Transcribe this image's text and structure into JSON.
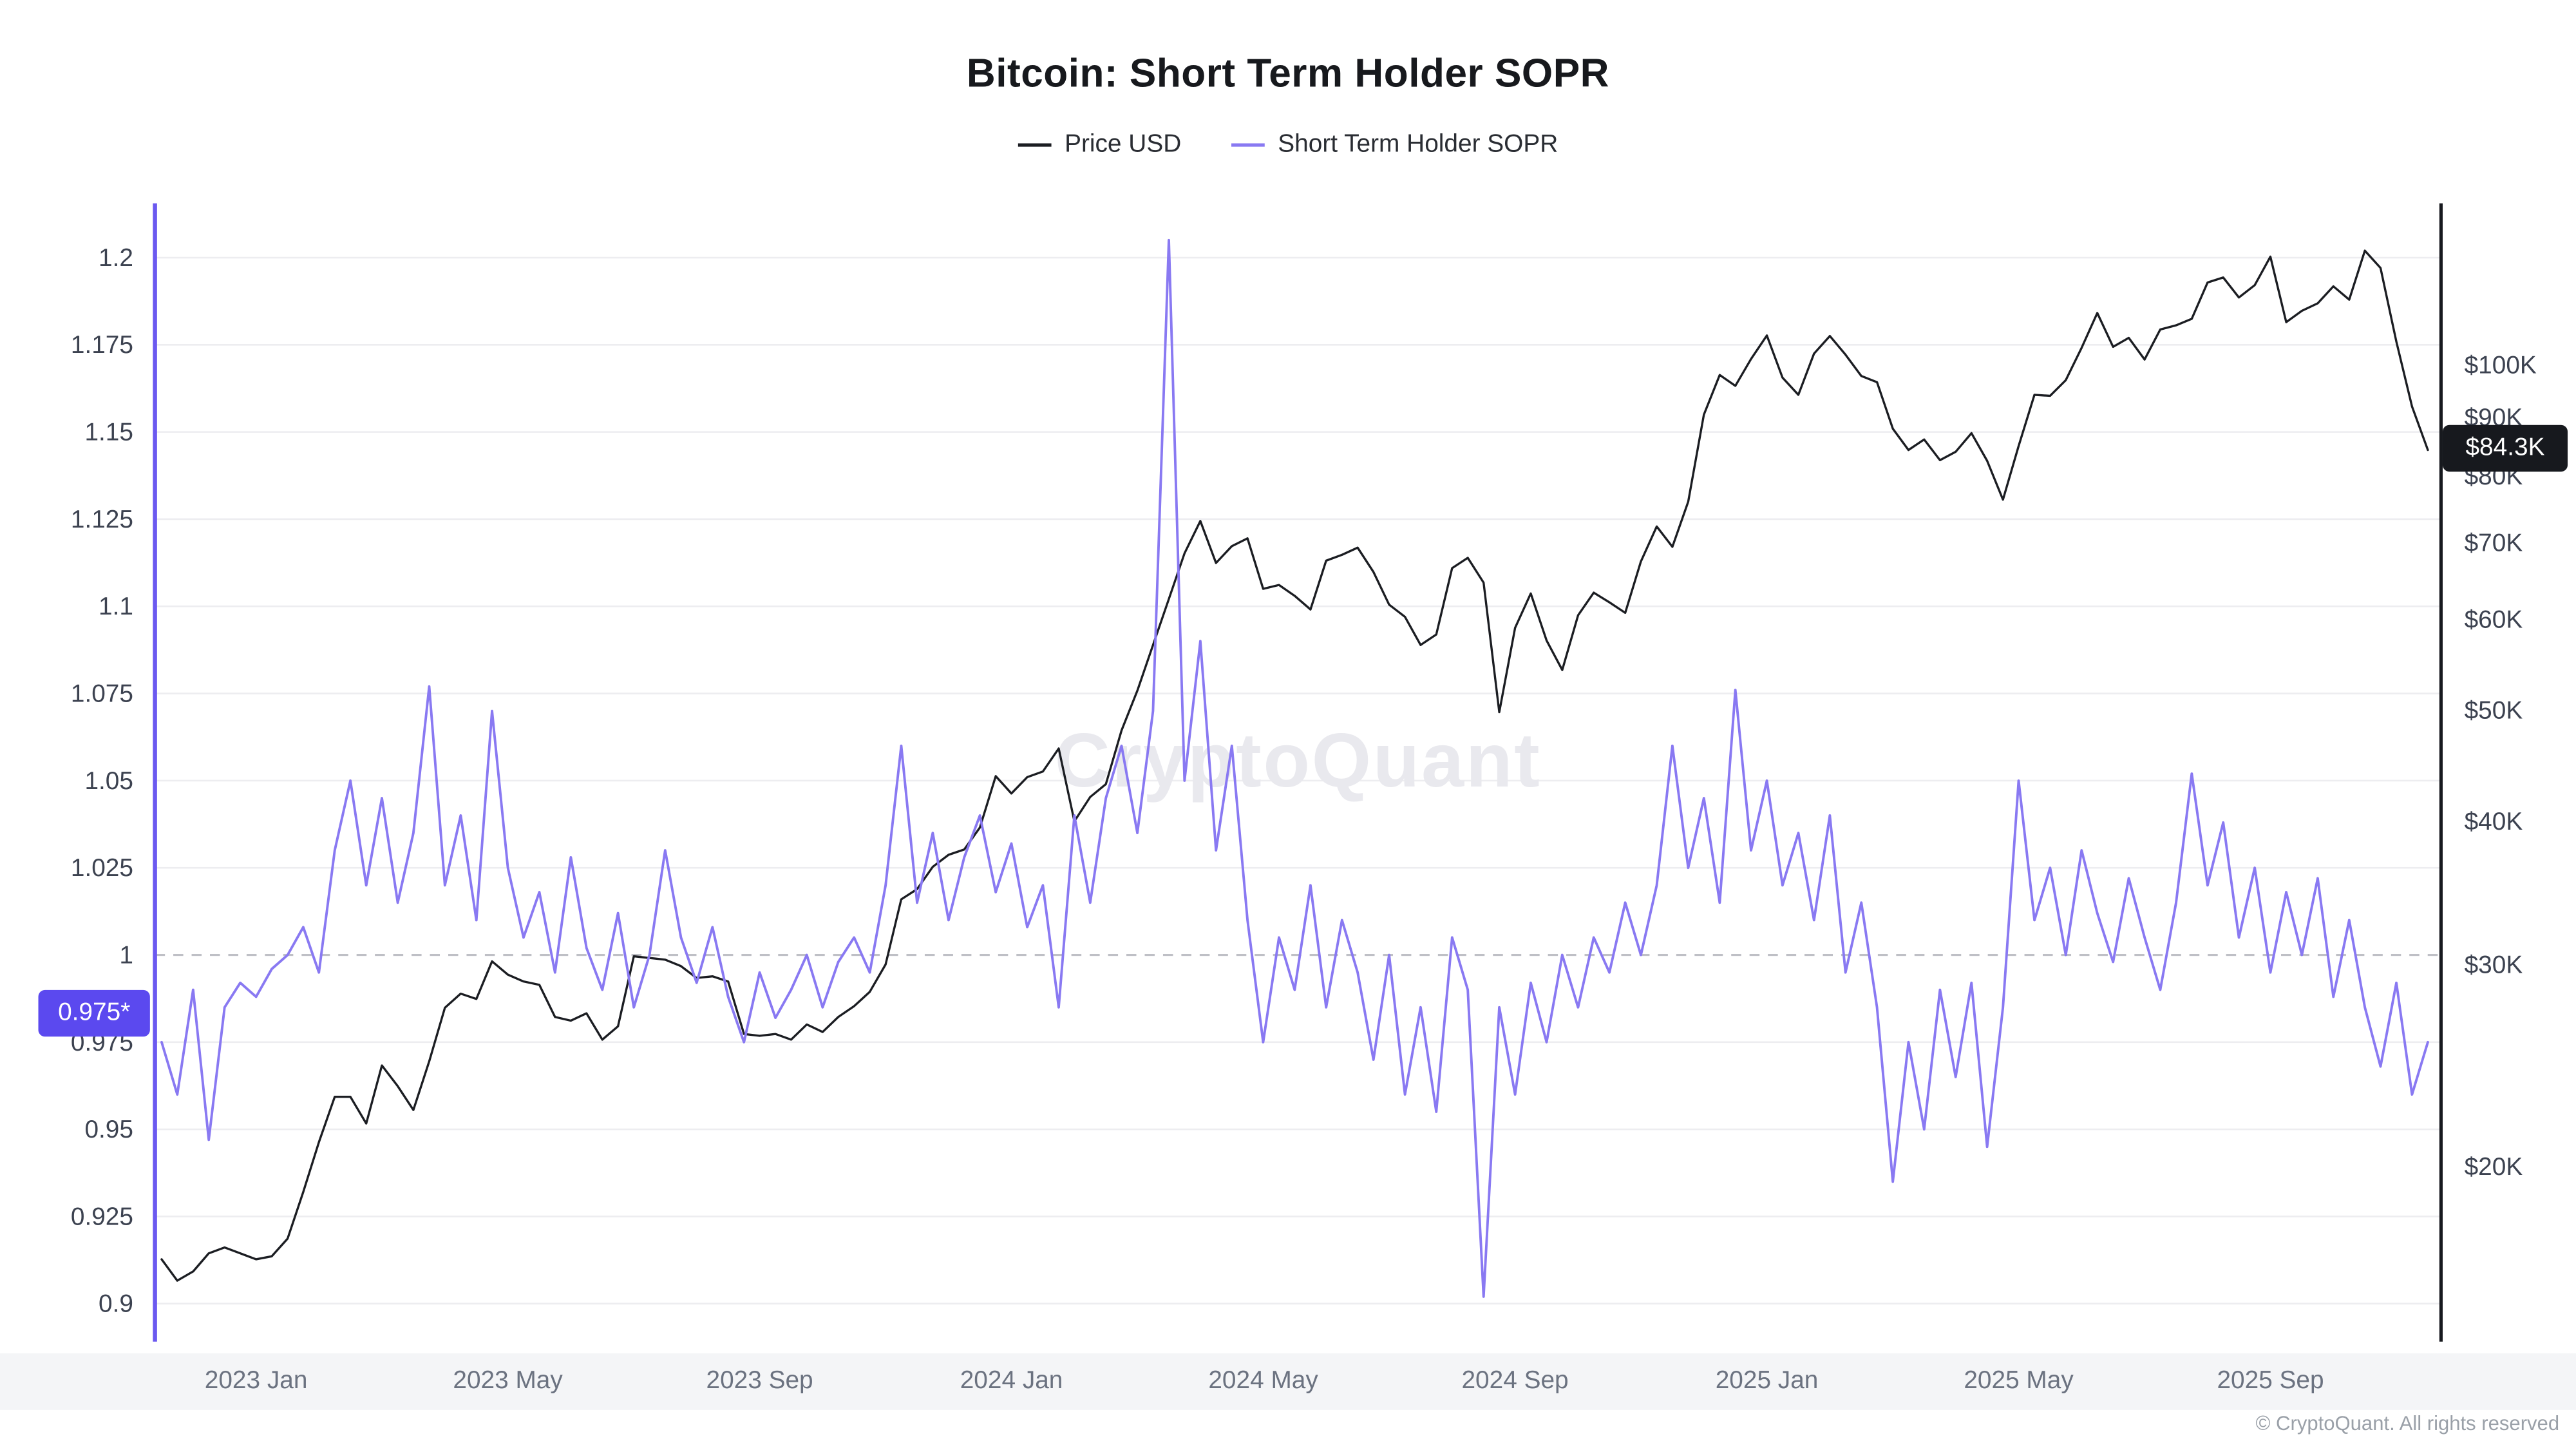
{
  "title": "Bitcoin: Short Term Holder SOPR",
  "legend": [
    {
      "label": "Price USD",
      "color": "#1b1d22"
    },
    {
      "label": "Short Term Holder SOPR",
      "color": "#8979f2"
    }
  ],
  "watermark": "CryptoQuant",
  "footer": "© CryptoQuant. All rights reserved",
  "badges": {
    "left": {
      "text": "0.975*",
      "bg": "#5b49ef"
    },
    "right": {
      "text": "$84.3K",
      "bg": "#17191e"
    }
  },
  "colors": {
    "sopr_line": "#8979f2",
    "price_line": "#1b1d22",
    "left_axis": "#6b59f0",
    "right_axis": "#17191e",
    "grid": "#ededf0",
    "baseline_dashed": "#bfc0c6",
    "tick_text": "#3c4250",
    "x_tick_text": "#6b7280",
    "watermark_text": "#e9e9ee",
    "xband_bg": "#f4f5f7"
  },
  "chart_data": {
    "type": "line",
    "title": "Bitcoin: Short Term Holder SOPR",
    "x_unit": "months since 2022-11-15",
    "x_range": [
      0,
      36
    ],
    "x_ticks": [
      {
        "label": "2023 Jan",
        "t": 1.5
      },
      {
        "label": "2023 May",
        "t": 5.5
      },
      {
        "label": "2023 Sep",
        "t": 9.5
      },
      {
        "label": "2024 Jan",
        "t": 13.5
      },
      {
        "label": "2024 May",
        "t": 17.5
      },
      {
        "label": "2024 Sep",
        "t": 21.5
      },
      {
        "label": "2025 Jan",
        "t": 25.5
      },
      {
        "label": "2025 May",
        "t": 29.5
      },
      {
        "label": "2025 Sep",
        "t": 33.5
      }
    ],
    "left_axis": {
      "name": "Short Term Holder SOPR",
      "ylim": [
        0.888,
        1.215
      ],
      "baseline": 1.0,
      "ticks": [
        {
          "label": "1.2",
          "v": 1.2
        },
        {
          "label": "1.175",
          "v": 1.175
        },
        {
          "label": "1.15",
          "v": 1.15
        },
        {
          "label": "1.125",
          "v": 1.125
        },
        {
          "label": "1.1",
          "v": 1.1
        },
        {
          "label": "1.075",
          "v": 1.075
        },
        {
          "label": "1.05",
          "v": 1.05
        },
        {
          "label": "1.025",
          "v": 1.025
        },
        {
          "label": "1",
          "v": 1.0
        },
        {
          "label": "0.975",
          "v": 0.975
        },
        {
          "label": "0.95",
          "v": 0.95
        },
        {
          "label": "0.925",
          "v": 0.925
        },
        {
          "label": "0.9",
          "v": 0.9
        }
      ]
    },
    "right_axis": {
      "name": "Price USD",
      "scale": "log",
      "unit": "USD thousands",
      "ticks": [
        {
          "label": "$100K",
          "v": 100
        },
        {
          "label": "$90K",
          "v": 90
        },
        {
          "label": "$80K",
          "v": 80
        },
        {
          "label": "$70K",
          "v": 70
        },
        {
          "label": "$60K",
          "v": 60
        },
        {
          "label": "$50K",
          "v": 50
        },
        {
          "label": "$40K",
          "v": 40
        },
        {
          "label": "$30K",
          "v": 30
        },
        {
          "label": "$20K",
          "v": 20
        }
      ],
      "last_value_label": "$84.3K"
    },
    "series": [
      {
        "name": "Price USD",
        "axis": "right",
        "color": "#1b1d22",
        "t_start": 0,
        "dt": 0.25,
        "values": [
          16.6,
          15.9,
          16.2,
          16.8,
          17.0,
          16.8,
          16.6,
          16.7,
          17.3,
          19.0,
          21.0,
          23.0,
          23.0,
          21.8,
          24.5,
          23.5,
          22.4,
          24.7,
          27.5,
          28.3,
          28.0,
          30.2,
          29.4,
          29.0,
          28.8,
          27.0,
          26.8,
          27.2,
          25.8,
          26.5,
          30.5,
          30.4,
          30.3,
          29.9,
          29.2,
          29.3,
          29.0,
          26.1,
          26.0,
          26.1,
          25.8,
          26.6,
          26.2,
          27.0,
          27.6,
          28.4,
          30.0,
          34.2,
          34.9,
          36.5,
          37.4,
          37.8,
          39.5,
          43.8,
          42.3,
          43.7,
          44.2,
          46.3,
          40.0,
          42.0,
          43.1,
          48.0,
          52.0,
          57.0,
          62.5,
          68.5,
          73.1,
          67.2,
          69.5,
          70.6,
          63.8,
          64.3,
          62.9,
          61.2,
          67.5,
          68.3,
          69.3,
          66.0,
          61.8,
          60.3,
          57.0,
          58.2,
          66.5,
          67.9,
          64.6,
          49.8,
          59.0,
          63.2,
          57.5,
          54.2,
          60.5,
          63.3,
          62.1,
          60.8,
          67.4,
          72.3,
          69.4,
          76.0,
          90.5,
          98.0,
          95.9,
          101.2,
          106.1,
          97.5,
          94.2,
          102.3,
          106.0,
          102.1,
          97.8,
          96.6,
          88.0,
          84.3,
          86.1,
          82.6,
          84.0,
          87.2,
          82.5,
          76.3,
          85.0,
          94.2,
          94.0,
          97.0,
          103.5,
          111.0,
          103.7,
          105.6,
          101.1,
          107.4,
          108.3,
          109.7,
          118.0,
          119.2,
          114.5,
          117.4,
          124.3,
          109.0,
          111.5,
          113.2,
          117.1,
          114.0,
          125.8,
          121.5,
          104.8,
          92.0,
          84.3
        ]
      },
      {
        "name": "Short Term Holder SOPR",
        "axis": "left",
        "color": "#8979f2",
        "t_start": 0,
        "dt": 0.25,
        "values": [
          0.975,
          0.96,
          0.99,
          0.947,
          0.985,
          0.992,
          0.988,
          0.996,
          1.0,
          1.008,
          0.995,
          1.03,
          1.05,
          1.02,
          1.045,
          1.015,
          1.035,
          1.077,
          1.02,
          1.04,
          1.01,
          1.07,
          1.025,
          1.005,
          1.018,
          0.995,
          1.028,
          1.002,
          0.99,
          1.012,
          0.985,
          1.0,
          1.03,
          1.005,
          0.992,
          1.008,
          0.988,
          0.975,
          0.995,
          0.982,
          0.99,
          1.0,
          0.985,
          0.998,
          1.005,
          0.995,
          1.02,
          1.06,
          1.015,
          1.035,
          1.01,
          1.028,
          1.04,
          1.018,
          1.032,
          1.008,
          1.02,
          0.985,
          1.04,
          1.015,
          1.045,
          1.06,
          1.035,
          1.07,
          1.205,
          1.05,
          1.09,
          1.03,
          1.06,
          1.01,
          0.975,
          1.005,
          0.99,
          1.02,
          0.985,
          1.01,
          0.995,
          0.97,
          1.0,
          0.96,
          0.985,
          0.955,
          1.005,
          0.99,
          0.902,
          0.985,
          0.96,
          0.992,
          0.975,
          1.0,
          0.985,
          1.005,
          0.995,
          1.015,
          1.0,
          1.02,
          1.06,
          1.025,
          1.045,
          1.015,
          1.076,
          1.03,
          1.05,
          1.02,
          1.035,
          1.01,
          1.04,
          0.995,
          1.015,
          0.985,
          0.935,
          0.975,
          0.95,
          0.99,
          0.965,
          0.992,
          0.945,
          0.985,
          1.05,
          1.01,
          1.025,
          1.0,
          1.03,
          1.012,
          0.998,
          1.022,
          1.005,
          0.99,
          1.015,
          1.052,
          1.02,
          1.038,
          1.005,
          1.025,
          0.995,
          1.018,
          1.0,
          1.022,
          0.988,
          1.01,
          0.985,
          0.968,
          0.992,
          0.96,
          0.975
        ]
      }
    ]
  }
}
